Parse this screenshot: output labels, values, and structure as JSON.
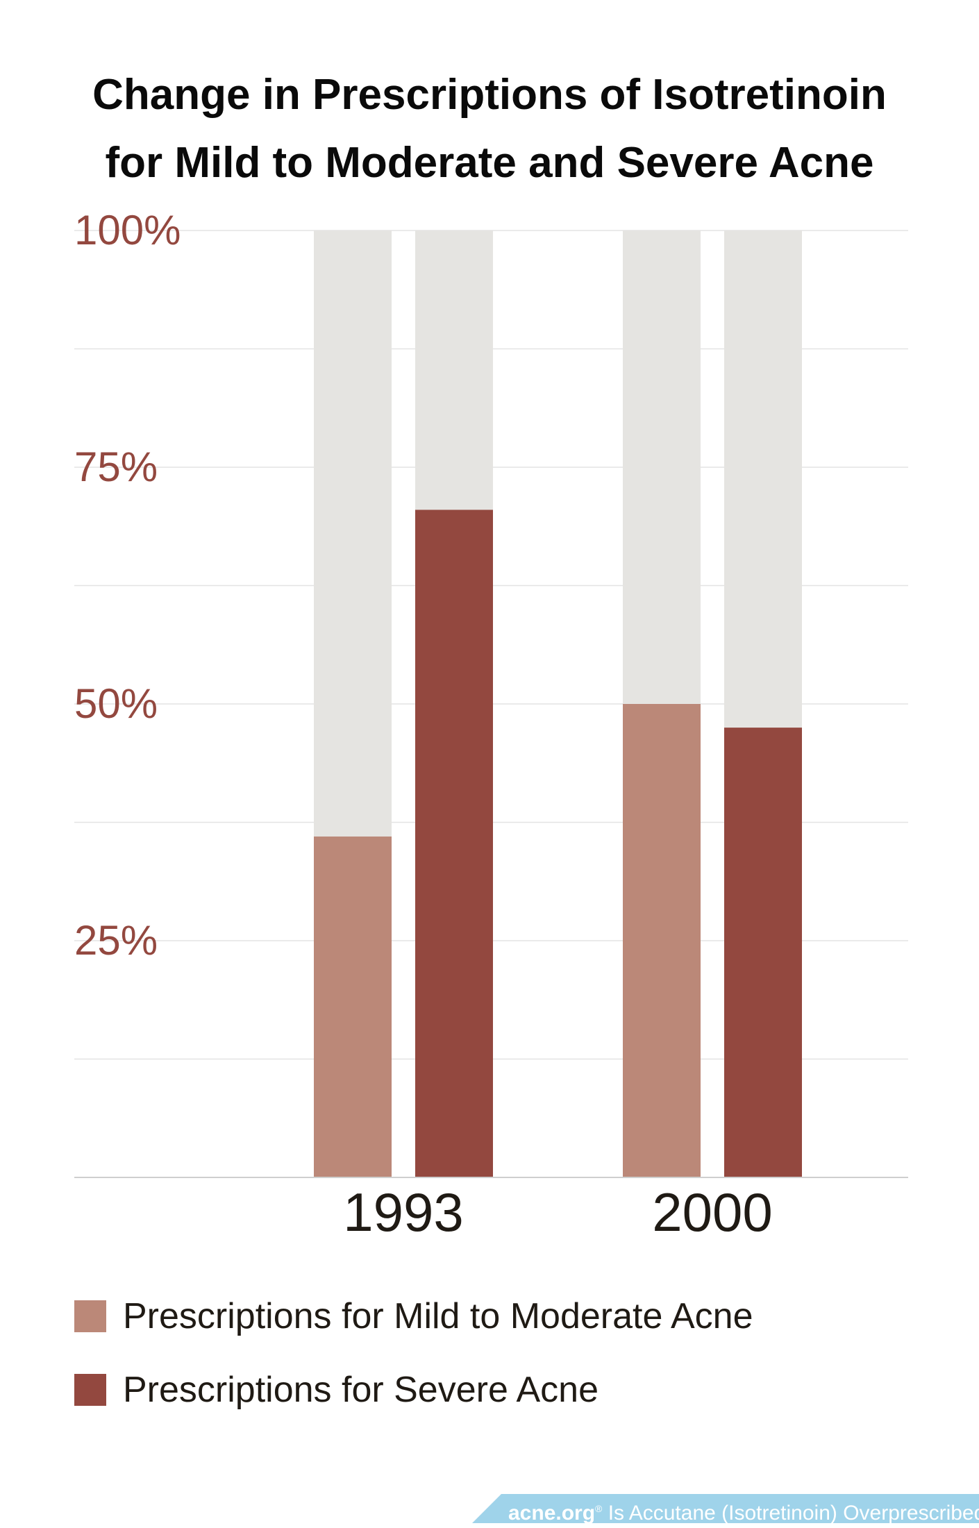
{
  "colors": {
    "background_bar": "#e5e4e1",
    "mild": "#bb8878",
    "severe": "#93483f",
    "tick_label": "#93483f",
    "category_label": "#1f1a14",
    "grid": "#e3e3e3",
    "banner": "#9fd3ea"
  },
  "chart_data": {
    "type": "bar",
    "title": "Change in Prescriptions of Isotretinoin for Mild to Moderate and Severe Acne",
    "title_lines": [
      "Change in Prescriptions of Isotretinoin",
      "for Mild to Moderate and Severe Acne"
    ],
    "categories": [
      "1993",
      "2000"
    ],
    "series": [
      {
        "name": "Prescriptions for Mild to Moderate Acne",
        "values": [
          36,
          50
        ]
      },
      {
        "name": "Prescriptions for Severe Acne",
        "values": [
          70.5,
          47.5
        ]
      }
    ],
    "ylim": [
      0,
      100
    ],
    "yticks": [
      100,
      75,
      50,
      25
    ],
    "ytick_labels": [
      "100%",
      "75%",
      "50%",
      "25%"
    ],
    "grid": true,
    "legend": "bottom"
  },
  "footer": {
    "brand": "acne.org",
    "trademark": "®",
    "caption": "Is Accutane (Isotretinoin) Overprescribed?"
  }
}
